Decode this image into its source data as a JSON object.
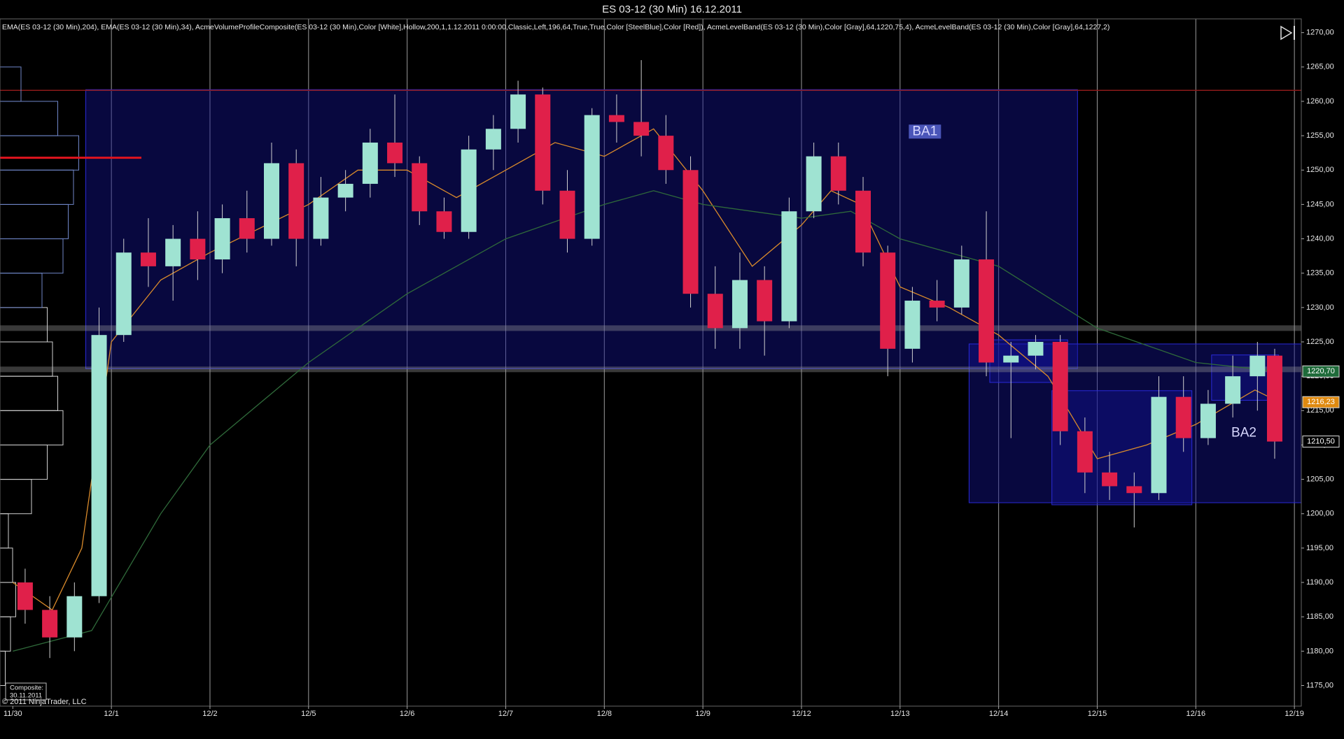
{
  "chart_data": {
    "type": "candlestick",
    "title": "ES 03-12 (30 Min)  16.12.2011",
    "indicators_label": "EMA(ES 03-12 (30 Min),204), EMA(ES 03-12 (30 Min),34), AcmeVolumeProfileComposite(ES 03-12 (30 Min),Color [White],Hollow,200,1,1.12.2011 0:00:00,Classic,Left,196,64,True,True,Color [SteelBlue],Color [Red]), AcmeLevelBand(ES 03-12 (30 Min),Color [Gray],64,1220,75,4), AcmeLevelBand(ES 03-12 (30 Min),Color [Gray],64,1227,2)",
    "copyright": "© 2011 NinjaTrader, LLC",
    "composite_label": [
      "Composite:",
      "30.11.2011"
    ],
    "up_color": "#9fe3d2",
    "down_color": "#e0204a",
    "wick_color": "#cfcfcf",
    "grid": true,
    "xlim": [
      -0.13,
      13.07
    ],
    "xticks": [
      {
        "value": 0,
        "label": "11/30"
      },
      {
        "value": 1,
        "label": "12/1"
      },
      {
        "value": 2,
        "label": "12/2"
      },
      {
        "value": 3,
        "label": "12/5"
      },
      {
        "value": 4,
        "label": "12/6"
      },
      {
        "value": 5,
        "label": "12/7"
      },
      {
        "value": 6,
        "label": "12/8"
      },
      {
        "value": 7,
        "label": "12/9"
      },
      {
        "value": 8,
        "label": "12/12"
      },
      {
        "value": 9,
        "label": "12/13"
      },
      {
        "value": 10,
        "label": "12/14"
      },
      {
        "value": 11,
        "label": "12/15"
      },
      {
        "value": 12,
        "label": "12/16"
      },
      {
        "value": 13,
        "label": "12/19"
      }
    ],
    "ylim": [
      1172,
      1272
    ],
    "yticks": [
      {
        "value": 1175,
        "label": "1175,00"
      },
      {
        "value": 1180,
        "label": "1180,00"
      },
      {
        "value": 1185,
        "label": "1185,00"
      },
      {
        "value": 1190,
        "label": "1190,00"
      },
      {
        "value": 1195,
        "label": "1195,00"
      },
      {
        "value": 1200,
        "label": "1200,00"
      },
      {
        "value": 1205,
        "label": "1205,00"
      },
      {
        "value": 1210,
        "label": "1210,00"
      },
      {
        "value": 1215,
        "label": "1215,00"
      },
      {
        "value": 1220,
        "label": "1220,00"
      },
      {
        "value": 1225,
        "label": "1225,00"
      },
      {
        "value": 1230,
        "label": "1230,00"
      },
      {
        "value": 1235,
        "label": "1235,00"
      },
      {
        "value": 1240,
        "label": "1240,00"
      },
      {
        "value": 1245,
        "label": "1245,00"
      },
      {
        "value": 1250,
        "label": "1250,00"
      },
      {
        "value": 1255,
        "label": "1255,00"
      },
      {
        "value": 1260,
        "label": "1260,00"
      },
      {
        "value": 1265,
        "label": "1265,00"
      },
      {
        "value": 1270,
        "label": "1270,00"
      }
    ],
    "x": [
      0.125,
      0.375,
      0.625,
      0.875,
      1.125,
      1.375,
      1.625,
      1.875,
      2.125,
      2.375,
      2.625,
      2.875,
      3.125,
      3.375,
      3.625,
      3.875,
      4.125,
      4.375,
      4.625,
      4.875,
      5.125,
      5.375,
      5.625,
      5.875,
      6.125,
      6.375,
      6.625,
      6.875,
      7.125,
      7.375,
      7.625,
      7.875,
      8.125,
      8.375,
      8.625,
      8.875,
      9.125,
      9.375,
      9.625,
      9.875,
      10.125,
      10.375,
      10.625,
      10.875,
      11.125,
      11.375,
      11.625,
      11.875,
      12.125,
      12.375,
      12.625,
      12.8
    ],
    "open": [
      1190,
      1186,
      1182,
      1188,
      1226,
      1238,
      1236,
      1240,
      1237,
      1243,
      1240,
      1251,
      1240,
      1246,
      1248,
      1254,
      1251,
      1244,
      1241,
      1253,
      1256,
      1261,
      1247,
      1240,
      1258,
      1257,
      1255,
      1250,
      1232,
      1227,
      1234,
      1228,
      1244,
      1252,
      1247,
      1238,
      1224,
      1231,
      1230,
      1237,
      1222,
      1223,
      1225,
      1212,
      1206,
      1204,
      1203,
      1217,
      1211,
      1216,
      1220,
      1223
    ],
    "high": [
      1192,
      1188,
      1190,
      1230,
      1240,
      1243,
      1242,
      1244,
      1245,
      1247,
      1254,
      1253,
      1249,
      1250,
      1256,
      1261,
      1252,
      1246,
      1255,
      1258,
      1263,
      1262,
      1250,
      1259,
      1261,
      1266,
      1258,
      1252,
      1236,
      1238,
      1236,
      1246,
      1254,
      1254,
      1249,
      1239,
      1233,
      1234,
      1239,
      1244,
      1225,
      1226,
      1226,
      1214,
      1209,
      1206,
      1220,
      1220,
      1218,
      1223,
      1225,
      1224
    ],
    "low": [
      1184,
      1179,
      1180,
      1187,
      1225,
      1233,
      1231,
      1234,
      1235,
      1238,
      1239,
      1236,
      1239,
      1244,
      1246,
      1249,
      1242,
      1240,
      1240,
      1250,
      1254,
      1245,
      1238,
      1239,
      1254,
      1252,
      1248,
      1230,
      1224,
      1224,
      1223,
      1227,
      1243,
      1245,
      1236,
      1220,
      1222,
      1228,
      1229,
      1220,
      1211,
      1221,
      1210,
      1203,
      1202,
      1198,
      1202,
      1209,
      1210,
      1214,
      1215,
      1208
    ],
    "close": [
      1186,
      1182,
      1188,
      1226,
      1238,
      1236,
      1240,
      1237,
      1243,
      1240,
      1251,
      1240,
      1246,
      1248,
      1254,
      1251,
      1244,
      1241,
      1253,
      1256,
      1261,
      1247,
      1240,
      1258,
      1257,
      1255,
      1250,
      1232,
      1227,
      1234,
      1228,
      1244,
      1252,
      1247,
      1238,
      1224,
      1231,
      1230,
      1237,
      1222,
      1223,
      1225,
      1212,
      1206,
      1204,
      1203,
      1217,
      1211,
      1216,
      1220,
      1223,
      1210.5
    ],
    "series": [
      {
        "name": "EMA 34",
        "color": "#d98a2b",
        "x": [
          0,
          0.4,
          0.7,
          1,
          1.5,
          2,
          3,
          3.5,
          4,
          4.5,
          5,
          5.5,
          6,
          6.5,
          7,
          7.5,
          8,
          8.3,
          8.6,
          9,
          9.5,
          10,
          10.5,
          11,
          11.5,
          12,
          12.6,
          12.85
        ],
        "values": [
          1190,
          1186,
          1195,
          1225,
          1234,
          1238,
          1245,
          1250,
          1250,
          1246,
          1250,
          1254,
          1252,
          1256,
          1247,
          1236,
          1242,
          1247,
          1245,
          1233,
          1230,
          1226,
          1220,
          1208,
          1210,
          1213,
          1218,
          1216.23
        ]
      },
      {
        "name": "EMA 204",
        "color": "#2f6a3a",
        "x": [
          0,
          0.8,
          1.5,
          2,
          3,
          4,
          5,
          6,
          6.5,
          7,
          8,
          8.5,
          9,
          10,
          11,
          12,
          12.85
        ],
        "values": [
          1180,
          1183,
          1200,
          1210,
          1222,
          1232,
          1240,
          1245,
          1247,
          1245,
          1243,
          1244,
          1240,
          1236,
          1227,
          1222,
          1220.7
        ]
      }
    ],
    "level_bands": [
      1227,
      1221
    ],
    "resistance_line": {
      "value": 1261.6,
      "color": "#8b1a1a"
    },
    "poc_line": {
      "value": 1251.8,
      "color": "#e0141e"
    },
    "boxes": [
      {
        "label": "BA1",
        "x": [
          0.74,
          10.8
        ],
        "y": [
          1221.1,
          1261.7
        ]
      },
      {
        "label": "BA2",
        "x": [
          9.7,
          13.07
        ],
        "y": [
          1201.6,
          1224.7
        ]
      },
      {
        "x": [
          9.91,
          10.7
        ],
        "y": [
          1219.1,
          1225.3
        ]
      },
      {
        "x": [
          10.54,
          11.96
        ],
        "y": [
          1201.3,
          1217.9
        ]
      },
      {
        "x": [
          12.16,
          12.84
        ],
        "y": [
          1216.5,
          1223.1
        ]
      }
    ],
    "volume_profile": {
      "prices": [
        1177.5,
        1182.5,
        1187.5,
        1192.5,
        1197.5,
        1202.5,
        1207.5,
        1212.5,
        1217.5,
        1222.5,
        1227.5,
        1232.5,
        1237.5,
        1242.5,
        1247.5,
        1252.5,
        1257.5,
        1262.5
      ],
      "values": [
        5,
        10,
        15,
        12,
        8,
        30,
        45,
        60,
        55,
        50,
        45,
        40,
        60,
        65,
        70,
        75,
        55,
        20
      ]
    },
    "price_markers": [
      {
        "value": 1220.7,
        "label": "1220,70",
        "color": "#1f6b3a"
      },
      {
        "value": 1216.23,
        "label": "1216,23",
        "color": "#e08a10"
      },
      {
        "value": 1210.5,
        "label": "1210,50",
        "color": "#000000"
      }
    ]
  }
}
